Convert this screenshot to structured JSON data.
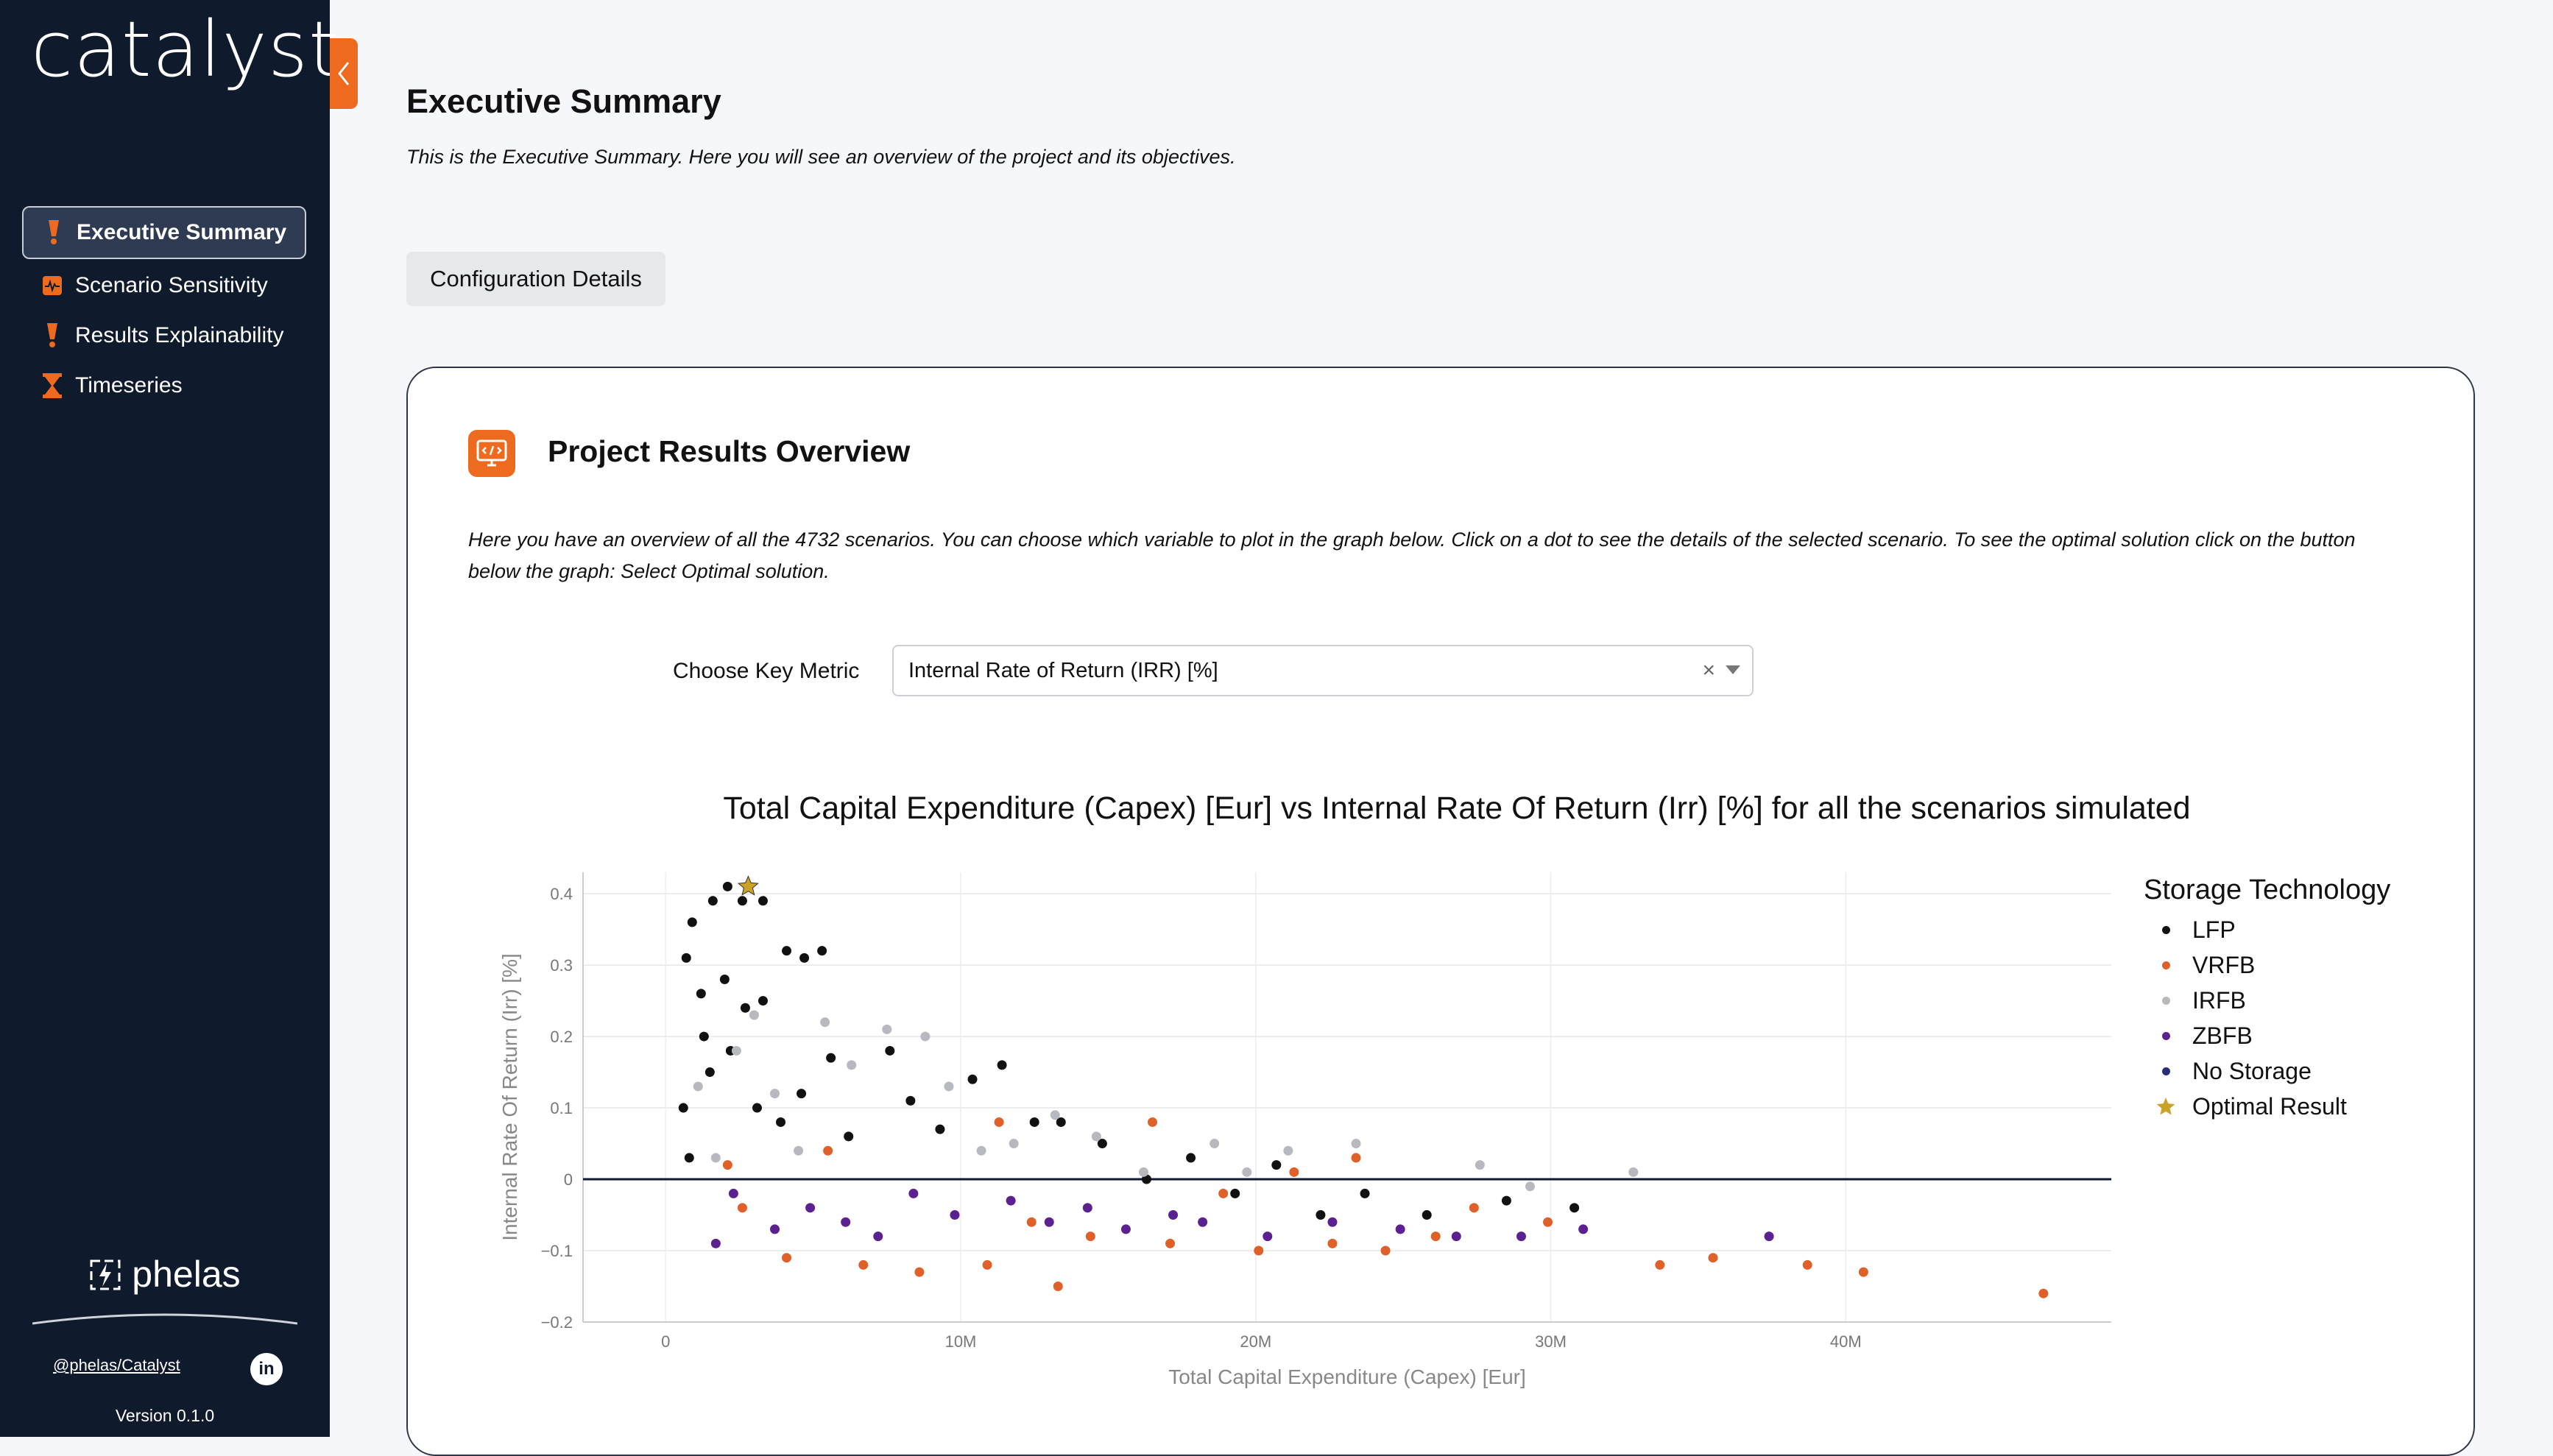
{
  "sidebar": {
    "logo": "catalyst",
    "items": [
      {
        "label": "Executive Summary",
        "icon": "exclamation-icon",
        "active": true
      },
      {
        "label": "Scenario Sensitivity",
        "icon": "pulse-icon",
        "active": false
      },
      {
        "label": "Results Explainability",
        "icon": "exclamation-icon",
        "active": false
      },
      {
        "label": "Timeseries",
        "icon": "hourglass-icon",
        "active": false
      }
    ],
    "brand": "phelas",
    "social_link": "@phelas/Catalyst",
    "linkedin": "in",
    "version": "Version 0.1.0"
  },
  "page": {
    "title": "Executive Summary",
    "description": "This is the Executive Summary. Here you will see an overview of the project and its objectives.",
    "config_button": "Configuration Details"
  },
  "card": {
    "title": "Project Results Overview",
    "description": "Here you have an overview of all the 4732 scenarios. You can choose which variable to plot in the graph below. Click on a dot to see the details of the selected scenario. To see the optimal solution click on the button below the graph: Select Optimal solution.",
    "metric_label": "Choose Key Metric",
    "metric_value": "Internal Rate of Return (IRR) [%]",
    "clear_symbol": "×"
  },
  "colors": {
    "accent": "#ee6a1f",
    "sidebar_bg": "#0f1b2d",
    "LFP": "#111111",
    "VRFB": "#e0602a",
    "IRFB": "#b8b8c0",
    "ZBFB": "#5b2191",
    "No Storage": "#2a2d7a",
    "Optimal Result": "#c9a227"
  },
  "chart_data": {
    "type": "scatter",
    "title": "Total Capital Expenditure (Capex) [Eur] vs Internal Rate Of Return (Irr) [%] for all the scenarios simulated",
    "xlabel": "Total Capital Expenditure (Capex) [Eur]",
    "ylabel": "Internal Rate Of Return (Irr) [%]",
    "xlim": [
      -2800000,
      49000000
    ],
    "ylim": [
      -0.2,
      0.43
    ],
    "x_ticks": [
      0,
      10000000,
      20000000,
      30000000,
      40000000
    ],
    "x_tick_labels": [
      "0",
      "10M",
      "20M",
      "30M",
      "40M"
    ],
    "y_ticks": [
      -0.2,
      -0.1,
      0,
      0.1,
      0.2,
      0.3,
      0.4
    ],
    "y_tick_labels": [
      "−0.2",
      "−0.1",
      "0",
      "0.1",
      "0.2",
      "0.3",
      "0.4"
    ],
    "grid": true,
    "legend_title": "Storage Technology",
    "legend_position": "right",
    "series": [
      {
        "name": "LFP",
        "marker": "dot",
        "points": [
          [
            700000,
            0.31
          ],
          [
            900000,
            0.36
          ],
          [
            1200000,
            0.26
          ],
          [
            1600000,
            0.39
          ],
          [
            2100000,
            0.41
          ],
          [
            2600000,
            0.39
          ],
          [
            3300000,
            0.39
          ],
          [
            600000,
            0.1
          ],
          [
            1300000,
            0.2
          ],
          [
            2000000,
            0.28
          ],
          [
            2700000,
            0.24
          ],
          [
            3300000,
            0.25
          ],
          [
            4100000,
            0.32
          ],
          [
            4700000,
            0.31
          ],
          [
            5300000,
            0.32
          ],
          [
            800000,
            0.03
          ],
          [
            1500000,
            0.15
          ],
          [
            2200000,
            0.18
          ],
          [
            3100000,
            0.1
          ],
          [
            3900000,
            0.08
          ],
          [
            4600000,
            0.12
          ],
          [
            5600000,
            0.17
          ],
          [
            6200000,
            0.06
          ],
          [
            7600000,
            0.18
          ],
          [
            8300000,
            0.11
          ],
          [
            9300000,
            0.07
          ],
          [
            10400000,
            0.14
          ],
          [
            11400000,
            0.16
          ],
          [
            12500000,
            0.08
          ],
          [
            13400000,
            0.08
          ],
          [
            14800000,
            0.05
          ],
          [
            16300000,
            0.0
          ],
          [
            17800000,
            0.03
          ],
          [
            19300000,
            -0.02
          ],
          [
            20700000,
            0.02
          ],
          [
            22200000,
            -0.05
          ],
          [
            23700000,
            -0.02
          ],
          [
            25800000,
            -0.05
          ],
          [
            28500000,
            -0.03
          ],
          [
            30800000,
            -0.04
          ]
        ]
      },
      {
        "name": "VRFB",
        "marker": "dot",
        "points": [
          [
            2100000,
            0.02
          ],
          [
            2600000,
            -0.04
          ],
          [
            4100000,
            -0.11
          ],
          [
            5500000,
            0.04
          ],
          [
            6700000,
            -0.12
          ],
          [
            8600000,
            -0.13
          ],
          [
            10900000,
            -0.12
          ],
          [
            11300000,
            0.08
          ],
          [
            12400000,
            -0.06
          ],
          [
            13300000,
            -0.15
          ],
          [
            14400000,
            -0.08
          ],
          [
            16500000,
            0.08
          ],
          [
            17100000,
            -0.09
          ],
          [
            18900000,
            -0.02
          ],
          [
            20100000,
            -0.1
          ],
          [
            21300000,
            0.01
          ],
          [
            22600000,
            -0.09
          ],
          [
            23400000,
            0.03
          ],
          [
            24400000,
            -0.1
          ],
          [
            26100000,
            -0.08
          ],
          [
            27400000,
            -0.04
          ],
          [
            29900000,
            -0.06
          ],
          [
            33700000,
            -0.12
          ],
          [
            35500000,
            -0.11
          ],
          [
            38700000,
            -0.12
          ],
          [
            40600000,
            -0.13
          ],
          [
            46700000,
            -0.16
          ]
        ]
      },
      {
        "name": "IRFB",
        "marker": "dot",
        "points": [
          [
            1100000,
            0.13
          ],
          [
            1700000,
            0.03
          ],
          [
            2400000,
            0.18
          ],
          [
            3000000,
            0.23
          ],
          [
            3700000,
            0.12
          ],
          [
            4500000,
            0.04
          ],
          [
            5400000,
            0.22
          ],
          [
            6300000,
            0.16
          ],
          [
            7500000,
            0.21
          ],
          [
            8800000,
            0.2
          ],
          [
            9600000,
            0.13
          ],
          [
            10700000,
            0.04
          ],
          [
            11800000,
            0.05
          ],
          [
            13200000,
            0.09
          ],
          [
            14600000,
            0.06
          ],
          [
            16200000,
            0.01
          ],
          [
            18600000,
            0.05
          ],
          [
            19700000,
            0.01
          ],
          [
            21100000,
            0.04
          ],
          [
            23400000,
            0.05
          ],
          [
            27600000,
            0.02
          ],
          [
            29300000,
            -0.01
          ],
          [
            32800000,
            0.01
          ]
        ]
      },
      {
        "name": "ZBFB",
        "marker": "dot",
        "points": [
          [
            1700000,
            -0.09
          ],
          [
            2300000,
            -0.02
          ],
          [
            3700000,
            -0.07
          ],
          [
            4900000,
            -0.04
          ],
          [
            6100000,
            -0.06
          ],
          [
            7200000,
            -0.08
          ],
          [
            8400000,
            -0.02
          ],
          [
            9800000,
            -0.05
          ],
          [
            11700000,
            -0.03
          ],
          [
            13000000,
            -0.06
          ],
          [
            14300000,
            -0.04
          ],
          [
            15600000,
            -0.07
          ],
          [
            17200000,
            -0.05
          ],
          [
            18200000,
            -0.06
          ],
          [
            20400000,
            -0.08
          ],
          [
            22600000,
            -0.06
          ],
          [
            24900000,
            -0.07
          ],
          [
            26800000,
            -0.08
          ],
          [
            29000000,
            -0.08
          ],
          [
            31100000,
            -0.07
          ],
          [
            37400000,
            -0.08
          ]
        ]
      },
      {
        "name": "No Storage",
        "marker": "dot",
        "points": []
      },
      {
        "name": "Optimal Result",
        "marker": "star",
        "points": [
          [
            2800000,
            0.41
          ]
        ]
      }
    ]
  }
}
